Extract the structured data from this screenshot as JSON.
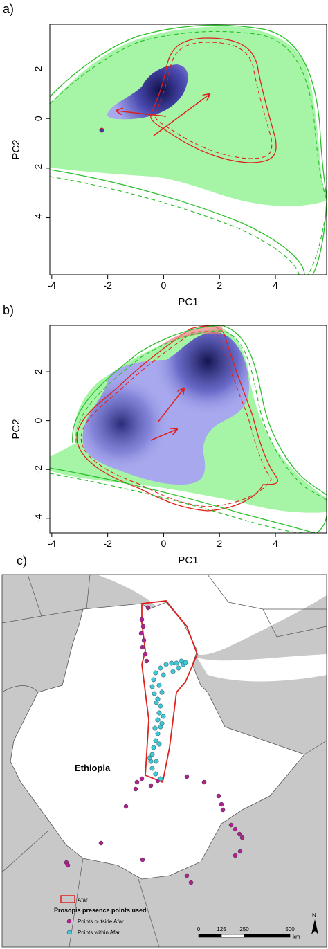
{
  "chart_data": [
    {
      "type": "niche",
      "panel_label": "a)",
      "xlabel": "PC1",
      "ylabel": "PC2",
      "xlim": [
        -4.07,
        5.83
      ],
      "ylim": [
        -6.3,
        3.8
      ],
      "xticks": [
        -4,
        -2,
        0,
        2,
        4
      ],
      "yticks": [
        -4,
        -2,
        0,
        2
      ]
    },
    {
      "type": "niche",
      "panel_label": "b)",
      "xlabel": "PC1",
      "ylabel": "PC2",
      "xlim": [
        -4.07,
        5.83
      ],
      "ylim": [
        -4.6,
        3.9
      ],
      "xticks": [
        -4,
        -2,
        0,
        2,
        4
      ],
      "yticks": [
        -4,
        -2,
        0,
        2
      ]
    }
  ],
  "map": {
    "panel_label": "c)",
    "country": "Ethiopia",
    "legend": {
      "region": {
        "label": "Afar",
        "color": "#e0201c"
      },
      "title": "Prosopis presence points used",
      "items": [
        {
          "label": "Points outside Afar",
          "color": "#b0208f"
        },
        {
          "label": "Points within Afar",
          "color": "#3ec8d8"
        }
      ]
    },
    "scale_bar": {
      "ticks": [
        0,
        125,
        250,
        500
      ],
      "unit": "km"
    },
    "north": "N"
  }
}
